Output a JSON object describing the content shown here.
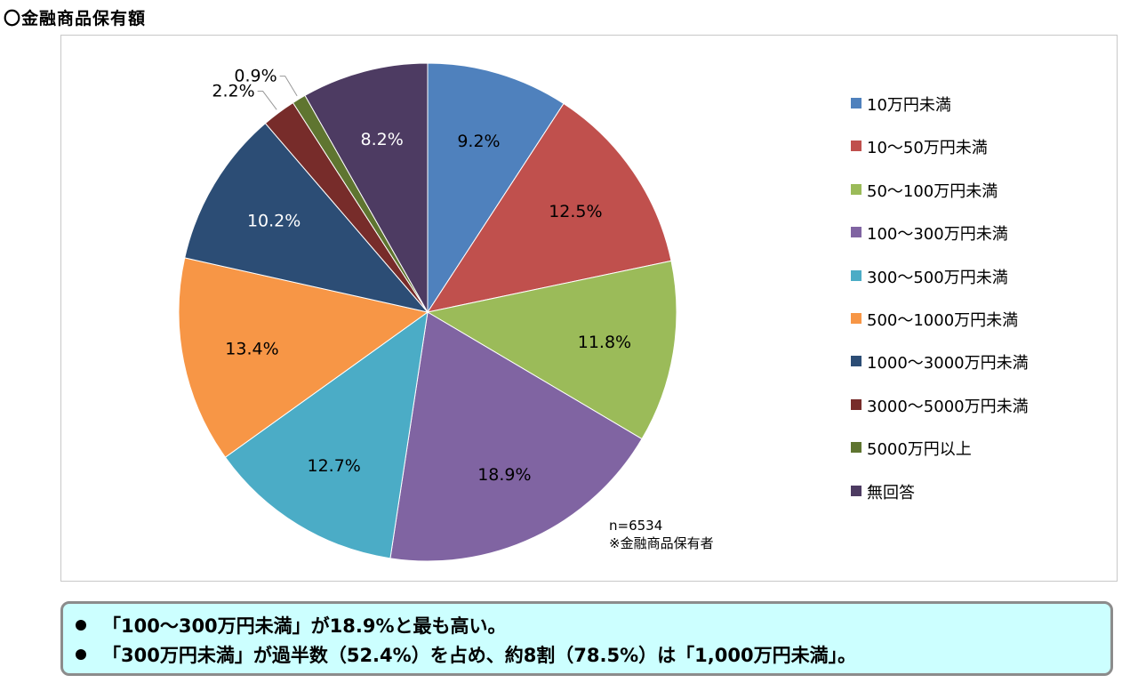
{
  "title": "〇金融商品保有額",
  "chart_data": {
    "type": "pie",
    "title": "",
    "slices": [
      {
        "label": "10万円未満",
        "value": 9.2,
        "display": "9.2%",
        "color": "#4f81bd"
      },
      {
        "label": "10～50万円未満",
        "value": 12.5,
        "display": "12.5%",
        "color": "#c0504d"
      },
      {
        "label": "50～100万円未満",
        "value": 11.8,
        "display": "11.8%",
        "color": "#9bbb59"
      },
      {
        "label": "100～300万円未満",
        "value": 18.9,
        "display": "18.9%",
        "color": "#8064a2"
      },
      {
        "label": "300～500万円未満",
        "value": 12.7,
        "display": "12.7%",
        "color": "#4bacc6"
      },
      {
        "label": "500～1000万円未満",
        "value": 13.4,
        "display": "13.4%",
        "color": "#f79646"
      },
      {
        "label": "1000～3000万円未満",
        "value": 10.2,
        "display": "10.2%",
        "color": "#2c4d75"
      },
      {
        "label": "3000～5000万円未満",
        "value": 2.2,
        "display": "2.2%",
        "color": "#772c2a"
      },
      {
        "label": "5000万円以上",
        "value": 0.9,
        "display": "0.9%",
        "color": "#5f7530"
      },
      {
        "label": "無回答",
        "value": 8.2,
        "display": "8.2%",
        "color": "#4d3b62"
      }
    ],
    "legend_position": "right"
  },
  "note": {
    "n": "n=6534",
    "scope": "※金融商品保有者"
  },
  "summary": [
    "「100～300万円未満」が18.9%と最も高い。",
    "「300万円未満」が過半数（52.4%）を占め、約8割（78.5%）は「1,000万円未満」。"
  ]
}
